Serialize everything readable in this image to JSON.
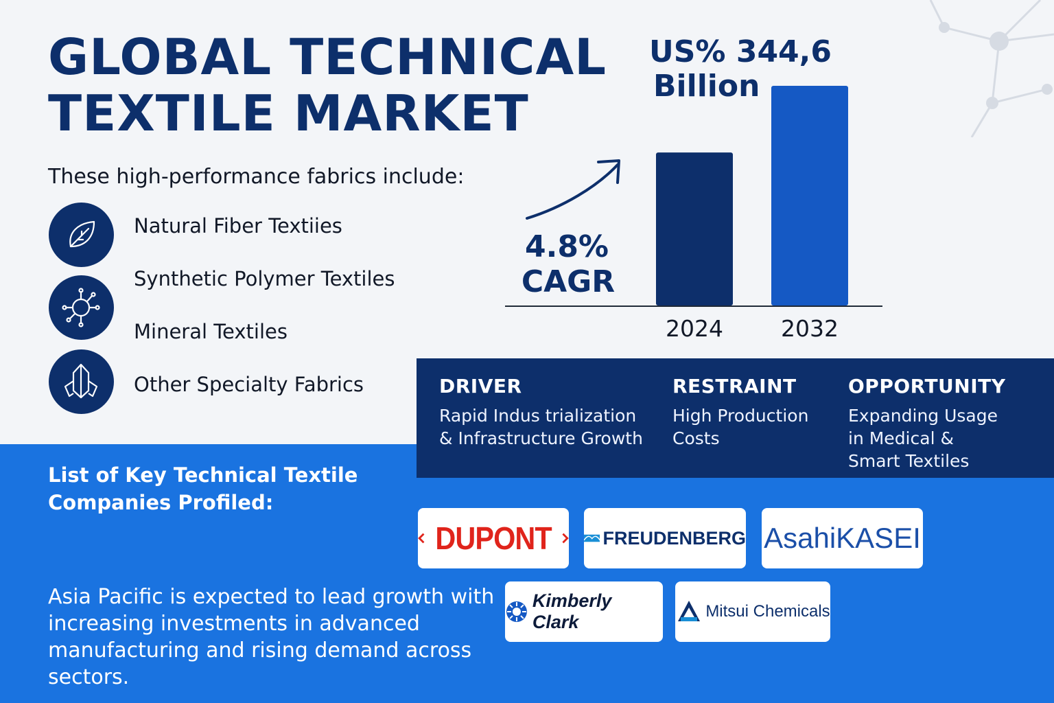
{
  "title": {
    "line1": "GLOBAL TECHNICAL",
    "line2": "TEXTILE MARKET"
  },
  "intro": "These high-performance fabrics include:",
  "fabric_types": [
    {
      "label": "Natural Fiber Textiies",
      "icon": "leaf-icon"
    },
    {
      "label": "Synthetic Polymer Textiles",
      "icon": "molecule-icon"
    },
    {
      "label": "Mineral Textiles",
      "icon": ""
    },
    {
      "label": "Other Specialty Fabrics",
      "icon": "crystal-icon"
    }
  ],
  "chart_data": {
    "type": "bar",
    "categories": [
      "2024",
      "2032"
    ],
    "values": [
      240,
      344.6
    ],
    "value_label": {
      "line1": "US% 344,6",
      "line2": "Billion"
    },
    "growth_label": {
      "line1": "4.8%",
      "line2": "CAGR"
    },
    "ylim": [
      0,
      400
    ],
    "colors": [
      "#0d2f6b",
      "#1559c4"
    ],
    "grid": false
  },
  "dro": {
    "driver": {
      "heading": "DRIVER",
      "lines": [
        "Rapid Indus trialization",
        "& Infrastructure Growth"
      ]
    },
    "restraint": {
      "heading": "RESTRAINT",
      "lines": [
        "High Production",
        "Costs"
      ]
    },
    "opportunity": {
      "heading": "OPPORTUNITY",
      "lines": [
        "Expanding Usage",
        "in Medical &",
        "Smart Textiles"
      ]
    }
  },
  "companies": {
    "heading": "List of Key Technical Textile Companies Profiled:",
    "logos": [
      "DUPONT",
      "FREUDENBERG",
      "AsahiKASEI",
      "Kimberly Clark",
      "Mitsui Chemicals"
    ]
  },
  "summary": "Asia Pacific is expected to lead growth with increasing investments in advanced manufacturing and rising demand across sectors.",
  "colors": {
    "navy": "#0d2f6b",
    "blue": "#1a73e0",
    "dupont_red": "#e0241b"
  }
}
